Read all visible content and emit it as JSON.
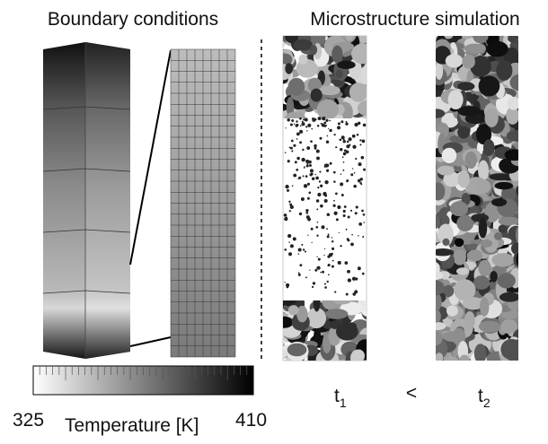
{
  "header": {
    "left_title": "Boundary conditions",
    "right_title": "Microstructure simulation"
  },
  "time_labels": [
    {
      "label": "t",
      "subscript": "1"
    },
    {
      "label": "t",
      "subscript": "2"
    }
  ],
  "comparison": "<",
  "colorbar": {
    "min_label": "325",
    "max_label": "410",
    "title": "Temperature [K]"
  }
}
